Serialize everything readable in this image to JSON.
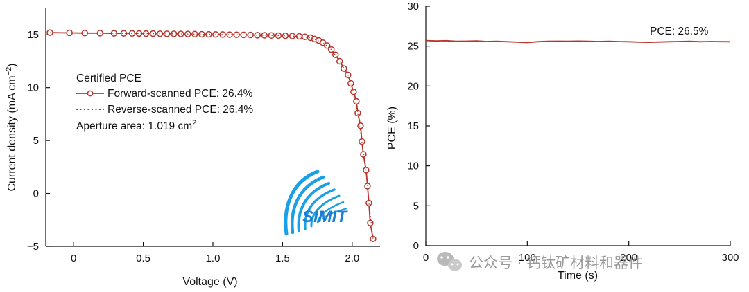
{
  "colors": {
    "series": "#b5352c",
    "axis": "#111111",
    "watermark": "#9a9a9a",
    "logo_blue": "#1aa0e6"
  },
  "chart_data": [
    {
      "type": "line",
      "panel": "left",
      "xlabel": "Voltage (V)",
      "ylabel": "Current density (mA cm−2)",
      "ylabel_base": "Current density (mA cm",
      "ylabel_sup": "−2",
      "ylabel_close": ")",
      "xlim": [
        -0.2,
        2.2
      ],
      "ylim": [
        -5,
        17.5
      ],
      "xticks": [
        0,
        0.5,
        1.0,
        1.5,
        2.0
      ],
      "xtick_labels": [
        "0",
        "0.5",
        "1.0",
        "1.5",
        "2.0"
      ],
      "yticks": [
        -5,
        0,
        5,
        10,
        15
      ],
      "ytick_labels": [
        "−5",
        "0",
        "5",
        "10",
        "15"
      ],
      "series": [
        {
          "name": "Forward-scanned PCE: 26.4%",
          "style": "line-circle",
          "x": [
            -0.17,
            -0.03,
            0.08,
            0.19,
            0.29,
            0.36,
            0.42,
            0.47,
            0.52,
            0.57,
            0.62,
            0.67,
            0.72,
            0.77,
            0.82,
            0.87,
            0.92,
            0.97,
            1.02,
            1.07,
            1.12,
            1.17,
            1.22,
            1.27,
            1.32,
            1.37,
            1.42,
            1.47,
            1.52,
            1.57,
            1.62,
            1.66,
            1.7,
            1.73,
            1.76,
            1.79,
            1.82,
            1.85,
            1.88,
            1.91,
            1.94,
            1.97,
            1.99,
            2.01,
            2.03,
            2.04,
            2.06,
            2.07,
            2.08,
            2.1,
            2.11,
            2.12,
            2.13,
            2.15
          ],
          "y": [
            15.2,
            15.18,
            15.16,
            15.15,
            15.14,
            15.14,
            15.13,
            15.12,
            15.11,
            15.11,
            15.1,
            15.09,
            15.09,
            15.08,
            15.07,
            15.06,
            15.05,
            15.04,
            15.03,
            15.02,
            15.01,
            15.0,
            14.99,
            14.98,
            14.96,
            14.95,
            14.93,
            14.92,
            14.9,
            14.88,
            14.85,
            14.8,
            14.72,
            14.6,
            14.45,
            14.25,
            13.98,
            13.6,
            13.1,
            12.5,
            11.8,
            11.2,
            10.4,
            9.6,
            8.7,
            7.6,
            6.4,
            4.9,
            3.7,
            2.2,
            0.7,
            -0.9,
            -2.8,
            -4.3
          ]
        },
        {
          "name": "Reverse-scanned PCE: 26.4%",
          "style": "dotted",
          "x": [
            -0.17,
            -0.03,
            0.19,
            0.47,
            0.77,
            1.07,
            1.37,
            1.57,
            1.7,
            1.79,
            1.85,
            1.91,
            1.97,
            2.01,
            2.04,
            2.07,
            2.1,
            2.12,
            2.15
          ],
          "y": [
            15.2,
            15.18,
            15.15,
            15.12,
            15.08,
            15.02,
            14.95,
            14.88,
            14.72,
            14.25,
            13.6,
            12.5,
            11.2,
            9.6,
            7.6,
            4.9,
            2.2,
            -0.9,
            -4.3
          ]
        }
      ],
      "legend": {
        "title": "Certified PCE",
        "items": [
          "Forward-scanned PCE: 26.4%",
          "Reverse-scanned PCE: 26.4%"
        ],
        "aperture_base": "Aperture area: 1.019 cm",
        "aperture_sup": "2"
      },
      "logo_text": "SIMIT"
    },
    {
      "type": "line",
      "panel": "right",
      "xlabel": "Time (s)",
      "ylabel": "PCE (%)",
      "xlim": [
        0,
        300
      ],
      "ylim": [
        0,
        30
      ],
      "xticks": [
        0,
        100,
        200,
        300
      ],
      "xtick_labels": [
        "0",
        "100",
        "200",
        "300"
      ],
      "yticks": [
        0,
        5,
        10,
        15,
        20,
        25,
        30
      ],
      "ytick_labels": [
        "0",
        "5",
        "10",
        "15",
        "20",
        "25",
        "30"
      ],
      "series": [
        {
          "name": "PCE",
          "x": [
            0,
            10,
            20,
            30,
            40,
            50,
            60,
            70,
            80,
            90,
            100,
            110,
            120,
            130,
            140,
            150,
            160,
            170,
            180,
            190,
            200,
            210,
            220,
            230,
            240,
            250,
            260,
            270,
            280,
            290,
            300
          ],
          "y": [
            25.7,
            25.65,
            25.68,
            25.6,
            25.62,
            25.66,
            25.58,
            25.6,
            25.55,
            25.5,
            25.45,
            25.55,
            25.6,
            25.62,
            25.6,
            25.63,
            25.6,
            25.58,
            25.6,
            25.57,
            25.55,
            25.5,
            25.48,
            25.52,
            25.55,
            25.58,
            25.6,
            25.55,
            25.58,
            25.56,
            25.55
          ]
        }
      ],
      "annotation": "PCE: 26.5%"
    }
  ],
  "watermark": {
    "text": "公众号 · 钙钛矿材料和器件"
  }
}
